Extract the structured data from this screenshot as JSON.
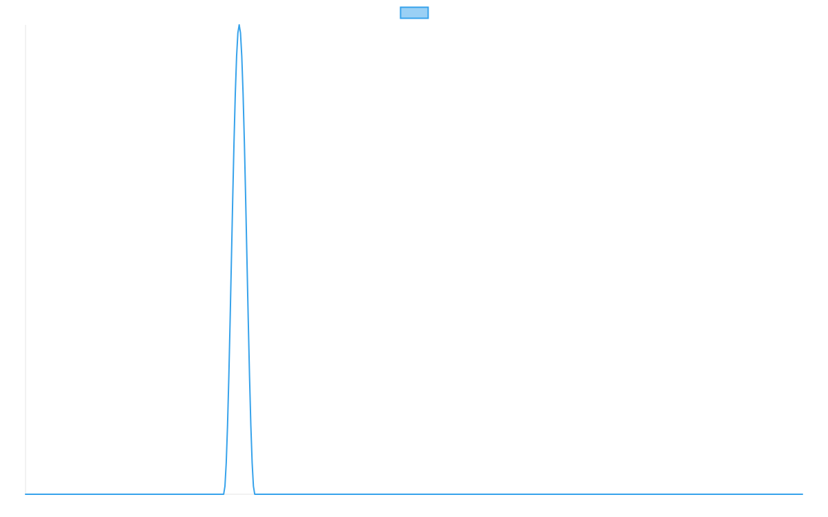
{
  "chart_data": {
    "type": "line",
    "title": "",
    "xlabel": "",
    "ylabel": "",
    "legend": {
      "placement": "top-center",
      "entries": [
        {
          "label": "",
          "color": "#36a2eb",
          "fill": "#9ad0f5"
        }
      ]
    },
    "grid": false,
    "x_range": [
      0,
      100
    ],
    "y_range": [
      0,
      1
    ],
    "series": [
      {
        "color": "#36a2eb",
        "peak": {
          "x": 27.5,
          "y": 1.0
        },
        "nonzero_span": [
          25.5,
          29.5
        ],
        "baseline": 0
      }
    ]
  },
  "colors": {
    "series_line": "#36a2eb",
    "legend_fill": "#9ad0f5",
    "axis": "#e6e6e6",
    "background": "#ffffff"
  }
}
